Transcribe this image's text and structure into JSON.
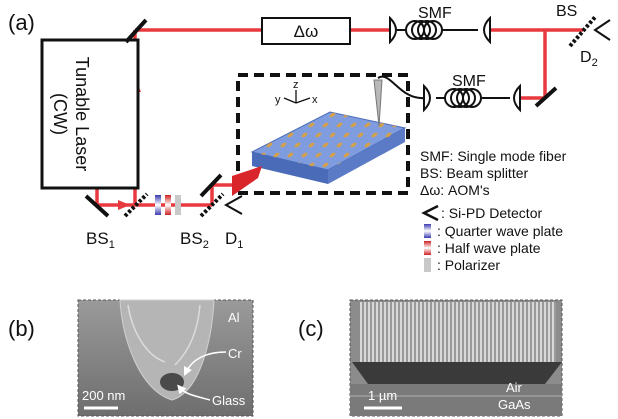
{
  "panels": {
    "a": "(a)",
    "b": "(b)",
    "c": "(c)"
  },
  "labels": {
    "laser_line1": "Tunable Laser",
    "laser_line2": "(CW)",
    "delta_omega": "Δω",
    "smf_top": "SMF",
    "smf_bottom": "SMF",
    "bs_right": "BS",
    "d2_letter": "D",
    "d2_sub": "2",
    "bs1_letter": "BS",
    "bs1_sub": "1",
    "bs2_letter": "BS",
    "bs2_sub": "2",
    "d1_letter": "D",
    "d1_sub": "1",
    "axis_x": "x",
    "axis_y": "y",
    "axis_z": "z"
  },
  "legend": {
    "smf": "SMF: Single mode fiber",
    "bs": "BS: Beam splitter",
    "aom": "Δω: AOM's",
    "detector": ": Si-PD Detector",
    "qwp": ": Quarter wave plate",
    "hwp": ": Half wave plate",
    "pol": ": Polarizer"
  },
  "sem_b": {
    "al": "Al",
    "cr": "Cr",
    "glass": "Glass",
    "scale": "200 nm"
  },
  "sem_c": {
    "air": "Air",
    "gaas": "GaAs",
    "scale": "1 µm"
  },
  "colors": {
    "beam": "#e8393f",
    "chip": "#6f8fd6",
    "chip_dark": "#4a6bb8",
    "hole": "#d4a04a",
    "sem_bg": "#8a8a8a"
  }
}
